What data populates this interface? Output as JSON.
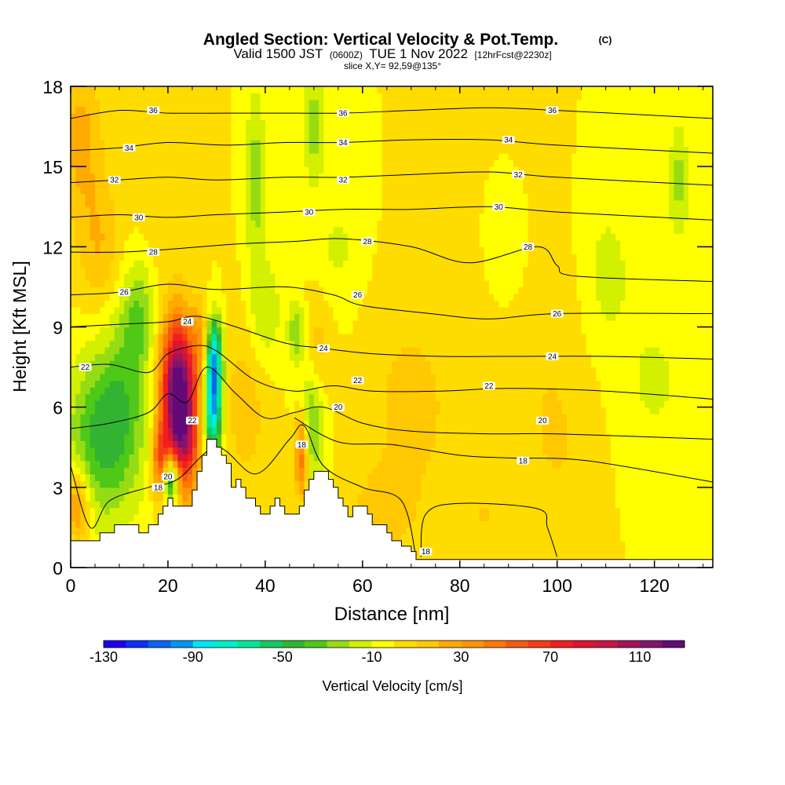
{
  "chart_data": {
    "type": "heatmap",
    "title": "Angled Section: Vertical Velocity & Pot.Temp.",
    "title_mark": "(C)",
    "subtitle_parts": {
      "valid": "Valid 1500 JST",
      "zulu": "(0600Z)",
      "date": "TUE 1 Nov 2022",
      "forecast": "[12hrFcst@2230z]"
    },
    "slice_label": "slice X,Y= 92,59@135°",
    "xlabel": "Distance [nm]",
    "ylabel": "Height [Kft MSL]",
    "xlim": [
      0,
      132
    ],
    "ylim": [
      0,
      18
    ],
    "x_ticks": [
      0,
      20,
      40,
      60,
      80,
      100,
      120
    ],
    "x_tick_labels": [
      "0",
      "20",
      "40",
      "60",
      "80",
      "100",
      "120"
    ],
    "y_ticks": [
      0,
      3,
      6,
      9,
      12,
      15,
      18
    ],
    "y_tick_labels": [
      "0",
      "3",
      "6",
      "9",
      "12",
      "15",
      "18"
    ],
    "colorbar": {
      "label": "Vertical Velocity [cm/s]",
      "min": -130,
      "max": 130,
      "tick_values": [
        -130,
        -90,
        -50,
        -10,
        30,
        70,
        110
      ],
      "tick_labels": [
        "-130",
        "-90",
        "-50",
        "-10",
        "30",
        "70",
        "110"
      ],
      "colors": [
        "#1e00f0",
        "#0a32f5",
        "#0a64f0",
        "#0096f0",
        "#00e6f5",
        "#00f0c8",
        "#00e696",
        "#14c864",
        "#32b432",
        "#50c818",
        "#96dc14",
        "#d2f000",
        "#ffff00",
        "#ffdc00",
        "#ffc800",
        "#ffaa00",
        "#ff9600",
        "#ff7800",
        "#f55a14",
        "#f53c14",
        "#f01e1e",
        "#dc1432",
        "#c81446",
        "#a0145a",
        "#82146e",
        "#640a78"
      ]
    },
    "background_value": 0,
    "velocity_features": [
      {
        "x": 22.5,
        "z": 5.6,
        "value": 110,
        "sx": 2.2,
        "sz": 2.0
      },
      {
        "x": 21.5,
        "z": 7.2,
        "value": 60,
        "sx": 2.5,
        "sz": 1.6
      },
      {
        "x": 18.5,
        "z": 4.0,
        "value": 60,
        "sx": 1.2,
        "sz": 1.0
      },
      {
        "x": 27.0,
        "z": 8.2,
        "value": 30,
        "sx": 1.4,
        "sz": 1.2
      },
      {
        "x": 29.3,
        "z": 6.4,
        "value": -100,
        "sx": 1.3,
        "sz": 1.6
      },
      {
        "x": 29.5,
        "z": 8.2,
        "value": -40,
        "sx": 1.2,
        "sz": 0.9
      },
      {
        "x": 20.6,
        "z": 3.3,
        "value": -90,
        "sx": 1.3,
        "sz": 0.7
      },
      {
        "x": 25.0,
        "z": 4.6,
        "value": 20,
        "sx": 1.5,
        "sz": 1.0
      },
      {
        "x": 47.5,
        "z": 4.2,
        "value": 55,
        "sx": 1.0,
        "sz": 1.1
      },
      {
        "x": 49.5,
        "z": 5.5,
        "value": -35,
        "sx": 1.8,
        "sz": 1.8
      },
      {
        "x": 50.5,
        "z": 8.0,
        "value": 20,
        "sx": 2.0,
        "sz": 1.4
      },
      {
        "x": 46.5,
        "z": 8.8,
        "value": -30,
        "sx": 1.2,
        "sz": 0.8
      },
      {
        "x": 1.5,
        "z": 2.4,
        "value": 40,
        "sx": 1.8,
        "sz": 1.0
      },
      {
        "x": 5.0,
        "z": 4.8,
        "value": -35,
        "sx": 4.5,
        "sz": 2.2
      },
      {
        "x": 11.0,
        "z": 6.0,
        "value": -30,
        "sx": 4.0,
        "sz": 2.5
      },
      {
        "x": 14.0,
        "z": 9.5,
        "value": -25,
        "sx": 2.5,
        "sz": 1.5
      },
      {
        "x": 36.0,
        "z": 6.2,
        "value": 15,
        "sx": 3.5,
        "sz": 2.5
      },
      {
        "x": 40.0,
        "z": 9.5,
        "value": -20,
        "sx": 2.5,
        "sz": 1.5
      },
      {
        "x": 38.0,
        "z": 14.5,
        "value": -25,
        "sx": 1.5,
        "sz": 2.5
      },
      {
        "x": 50.0,
        "z": 16.5,
        "value": -25,
        "sx": 1.5,
        "sz": 1.6
      },
      {
        "x": 2.0,
        "z": 16.0,
        "value": 25,
        "sx": 3.0,
        "sz": 2.0
      },
      {
        "x": 6.0,
        "z": 12.0,
        "value": 20,
        "sx": 3.0,
        "sz": 1.8
      },
      {
        "x": 20.0,
        "z": 14.0,
        "value": 10,
        "sx": 4.0,
        "sz": 2.5
      },
      {
        "x": 70.0,
        "z": 6.0,
        "value": 15,
        "sx": 6.0,
        "sz": 2.5
      },
      {
        "x": 64.0,
        "z": 2.0,
        "value": 15,
        "sx": 5.0,
        "sz": 1.2
      },
      {
        "x": 95.0,
        "z": 9.5,
        "value": 10,
        "sx": 8.0,
        "sz": 2.5
      },
      {
        "x": 110.0,
        "z": 11.0,
        "value": -15,
        "sx": 4.0,
        "sz": 2.0
      },
      {
        "x": 90.0,
        "z": 11.5,
        "value": -15,
        "sx": 3.0,
        "sz": 1.5
      },
      {
        "x": 125.0,
        "z": 14.5,
        "value": -25,
        "sx": 1.5,
        "sz": 1.5
      },
      {
        "x": 100.0,
        "z": 4.5,
        "value": 10,
        "sx": 5.0,
        "sz": 2.0
      },
      {
        "x": 85.0,
        "z": 2.0,
        "value": 10,
        "sx": 5.0,
        "sz": 1.2
      },
      {
        "x": 120.0,
        "z": 7.0,
        "value": -12,
        "sx": 5.0,
        "sz": 2.0
      },
      {
        "x": 55.0,
        "z": 12.0,
        "value": -12,
        "sx": 3.0,
        "sz": 1.5
      }
    ],
    "terrain": [
      [
        0,
        1.0
      ],
      [
        5,
        1.0
      ],
      [
        6,
        1.3
      ],
      [
        8,
        1.3
      ],
      [
        9,
        1.6
      ],
      [
        13,
        1.6
      ],
      [
        14,
        1.3
      ],
      [
        15,
        1.3
      ],
      [
        16,
        1.6
      ],
      [
        17,
        1.6
      ],
      [
        18,
        2.0
      ],
      [
        19,
        2.3
      ],
      [
        20,
        2.6
      ],
      [
        21,
        2.3
      ],
      [
        24,
        2.3
      ],
      [
        25,
        2.9
      ],
      [
        26,
        3.6
      ],
      [
        27,
        4.2
      ],
      [
        28,
        4.8
      ],
      [
        29,
        4.8
      ],
      [
        30,
        4.5
      ],
      [
        31,
        4.2
      ],
      [
        32,
        3.9
      ],
      [
        33,
        3.0
      ],
      [
        34,
        3.3
      ],
      [
        35,
        3.0
      ],
      [
        36,
        2.6
      ],
      [
        37,
        2.6
      ],
      [
        38,
        2.3
      ],
      [
        39,
        2.0
      ],
      [
        40,
        2.0
      ],
      [
        41,
        2.3
      ],
      [
        42,
        2.6
      ],
      [
        43,
        2.3
      ],
      [
        44,
        2.0
      ],
      [
        46,
        2.0
      ],
      [
        47,
        2.3
      ],
      [
        48,
        2.9
      ],
      [
        49,
        3.3
      ],
      [
        50,
        3.6
      ],
      [
        52,
        3.6
      ],
      [
        53,
        3.3
      ],
      [
        54,
        3.0
      ],
      [
        55,
        2.6
      ],
      [
        56,
        2.3
      ],
      [
        57,
        1.9
      ],
      [
        58,
        2.3
      ],
      [
        60,
        2.3
      ],
      [
        61,
        2.0
      ],
      [
        62,
        1.6
      ],
      [
        64,
        1.6
      ],
      [
        65,
        1.3
      ],
      [
        66,
        1.0
      ],
      [
        68,
        0.8
      ],
      [
        70,
        0.6
      ],
      [
        71,
        0.3
      ],
      [
        132,
        0.3
      ]
    ],
    "isentropes": [
      {
        "label": "18",
        "points": [
          [
            0,
            3.8
          ],
          [
            4,
            1.5
          ],
          [
            8,
            2.5
          ],
          [
            16,
            3.0
          ],
          [
            22,
            3.3
          ],
          [
            30,
            4.5
          ],
          [
            38,
            3.5
          ],
          [
            45,
            4.8
          ],
          [
            48,
            5.3
          ],
          [
            52,
            3.8
          ],
          [
            60,
            3.0
          ],
          [
            68,
            2.5
          ],
          [
            71,
            0.4
          ]
        ],
        "label_at": [
          [
            18,
            3.0
          ]
        ]
      },
      {
        "label": "18",
        "points": [
          [
            72,
            0.4
          ],
          [
            73,
            2.0
          ],
          [
            80,
            2.4
          ],
          [
            96,
            2.2
          ],
          [
            98,
            1.5
          ],
          [
            100,
            0.4
          ]
        ],
        "label_at": [
          [
            73,
            0.6
          ]
        ]
      },
      {
        "label": "18",
        "points": [
          [
            46,
            5.6
          ],
          [
            55,
            4.7
          ],
          [
            66,
            4.6
          ],
          [
            80,
            4.2
          ],
          [
            90,
            4.1
          ],
          [
            106,
            4.0
          ],
          [
            132,
            3.2
          ]
        ],
        "label_at": [
          [
            47.5,
            4.6
          ],
          [
            93,
            4.0
          ]
        ]
      },
      {
        "label": "20",
        "points": [
          [
            0,
            5.2
          ],
          [
            8,
            5.4
          ],
          [
            16,
            5.8
          ],
          [
            20,
            6.5
          ],
          [
            24,
            6.2
          ],
          [
            28,
            7.5
          ],
          [
            34,
            6.5
          ],
          [
            40,
            5.6
          ],
          [
            46,
            5.8
          ],
          [
            52,
            6.0
          ],
          [
            60,
            5.4
          ],
          [
            70,
            5.1
          ],
          [
            86,
            5.0
          ],
          [
            100,
            5.0
          ],
          [
            132,
            4.8
          ]
        ],
        "label_at": [
          [
            20,
            3.4
          ],
          [
            55,
            6.0
          ],
          [
            97,
            5.5
          ]
        ]
      },
      {
        "label": "22",
        "points": [
          [
            0,
            7.5
          ],
          [
            8,
            7.6
          ],
          [
            16,
            7.3
          ],
          [
            20,
            8.0
          ],
          [
            26,
            8.3
          ],
          [
            30,
            8.1
          ],
          [
            38,
            7.0
          ],
          [
            46,
            6.6
          ],
          [
            54,
            6.8
          ],
          [
            62,
            6.6
          ],
          [
            76,
            6.6
          ],
          [
            90,
            6.7
          ],
          [
            110,
            6.6
          ],
          [
            132,
            6.3
          ]
        ],
        "label_at": [
          [
            3,
            7.5
          ],
          [
            25,
            5.5
          ],
          [
            59,
            7.0
          ],
          [
            86,
            6.8
          ]
        ]
      },
      {
        "label": "24",
        "points": [
          [
            0,
            9.0
          ],
          [
            10,
            9.1
          ],
          [
            20,
            9.2
          ],
          [
            26,
            9.4
          ],
          [
            34,
            9.0
          ],
          [
            44,
            8.4
          ],
          [
            52,
            8.2
          ],
          [
            62,
            8.0
          ],
          [
            76,
            7.9
          ],
          [
            90,
            7.9
          ],
          [
            110,
            7.9
          ],
          [
            132,
            7.8
          ]
        ],
        "label_at": [
          [
            24,
            9.2
          ],
          [
            52,
            8.2
          ],
          [
            99,
            7.9
          ]
        ]
      },
      {
        "label": "26",
        "points": [
          [
            0,
            10.2
          ],
          [
            10,
            10.3
          ],
          [
            20,
            10.6
          ],
          [
            30,
            10.4
          ],
          [
            44,
            10.5
          ],
          [
            54,
            10.2
          ],
          [
            60,
            9.8
          ],
          [
            74,
            9.5
          ],
          [
            86,
            9.3
          ],
          [
            100,
            9.5
          ],
          [
            132,
            9.5
          ]
        ],
        "label_at": [
          [
            11,
            10.3
          ],
          [
            59,
            10.2
          ],
          [
            100,
            9.5
          ]
        ]
      },
      {
        "label": "28",
        "points": [
          [
            0,
            11.8
          ],
          [
            10,
            11.8
          ],
          [
            20,
            11.9
          ],
          [
            34,
            12.1
          ],
          [
            46,
            12.2
          ],
          [
            56,
            12.3
          ],
          [
            70,
            12.0
          ],
          [
            82,
            11.4
          ],
          [
            96,
            12.0
          ],
          [
            100,
            11.3
          ],
          [
            104,
            10.9
          ],
          [
            132,
            10.7
          ]
        ],
        "label_at": [
          [
            17,
            11.8
          ],
          [
            61,
            12.2
          ],
          [
            94,
            12.0
          ]
        ]
      },
      {
        "label": "30",
        "points": [
          [
            0,
            13.1
          ],
          [
            10,
            13.2
          ],
          [
            20,
            13.1
          ],
          [
            30,
            13.2
          ],
          [
            44,
            13.3
          ],
          [
            56,
            13.4
          ],
          [
            70,
            13.4
          ],
          [
            86,
            13.5
          ],
          [
            100,
            13.3
          ],
          [
            132,
            13.0
          ]
        ],
        "label_at": [
          [
            14,
            13.1
          ],
          [
            49,
            13.3
          ],
          [
            88,
            13.5
          ]
        ]
      },
      {
        "label": "32",
        "points": [
          [
            0,
            14.4
          ],
          [
            10,
            14.5
          ],
          [
            20,
            14.6
          ],
          [
            30,
            14.5
          ],
          [
            44,
            14.6
          ],
          [
            56,
            14.6
          ],
          [
            70,
            14.7
          ],
          [
            86,
            14.8
          ],
          [
            100,
            14.6
          ],
          [
            132,
            14.3
          ]
        ],
        "label_at": [
          [
            9,
            14.5
          ],
          [
            56,
            14.5
          ],
          [
            92,
            14.7
          ]
        ]
      },
      {
        "label": "34",
        "points": [
          [
            0,
            15.6
          ],
          [
            10,
            15.7
          ],
          [
            20,
            15.9
          ],
          [
            32,
            15.8
          ],
          [
            44,
            15.9
          ],
          [
            56,
            15.9
          ],
          [
            70,
            16.0
          ],
          [
            86,
            16.0
          ],
          [
            100,
            15.8
          ],
          [
            132,
            15.5
          ]
        ],
        "label_at": [
          [
            12,
            15.7
          ],
          [
            56,
            15.9
          ],
          [
            90,
            16.0
          ]
        ]
      },
      {
        "label": "36",
        "points": [
          [
            0,
            16.8
          ],
          [
            10,
            17.1
          ],
          [
            20,
            17.0
          ],
          [
            32,
            17.0
          ],
          [
            44,
            17.0
          ],
          [
            56,
            17.0
          ],
          [
            70,
            17.1
          ],
          [
            86,
            17.2
          ],
          [
            100,
            17.1
          ],
          [
            132,
            16.8
          ]
        ],
        "label_at": [
          [
            17,
            17.1
          ],
          [
            56,
            17.0
          ],
          [
            99,
            17.1
          ]
        ]
      }
    ]
  }
}
